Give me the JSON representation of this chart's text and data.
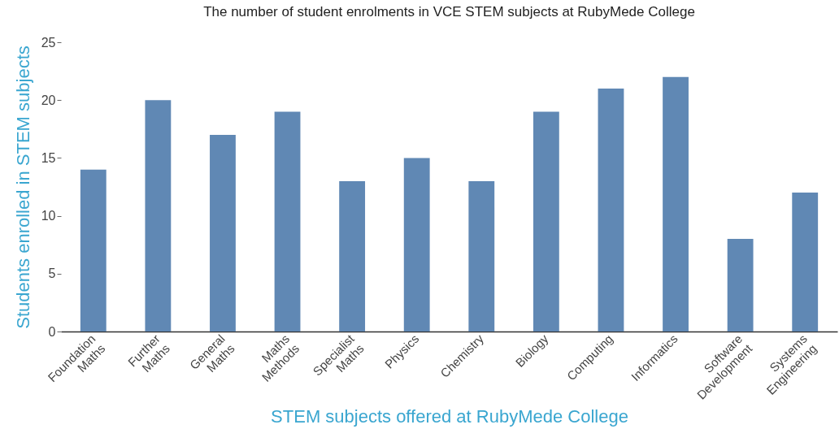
{
  "chart_data": {
    "type": "bar",
    "title": "The number of student enrolments in VCE STEM subjects at RubyMede College",
    "xlabel": "STEM subjects offered at RubyMede College",
    "ylabel": "Students enrolled in STEM subjects",
    "categories": [
      "Foundation Maths",
      "Further Maths",
      "General Maths",
      "Maths Methods",
      "Specialist Maths",
      "Physics",
      "Chemistry",
      "Biology",
      "Computing",
      "Informatics",
      "Software Development",
      "Systems Engineering"
    ],
    "values": [
      14,
      20,
      17,
      19,
      13,
      15,
      13,
      19,
      21,
      22,
      8,
      12
    ],
    "color": "#6088b4",
    "ylim": [
      0,
      25
    ],
    "yticks": [
      0,
      5,
      10,
      15,
      20,
      25
    ],
    "grid": false
  }
}
